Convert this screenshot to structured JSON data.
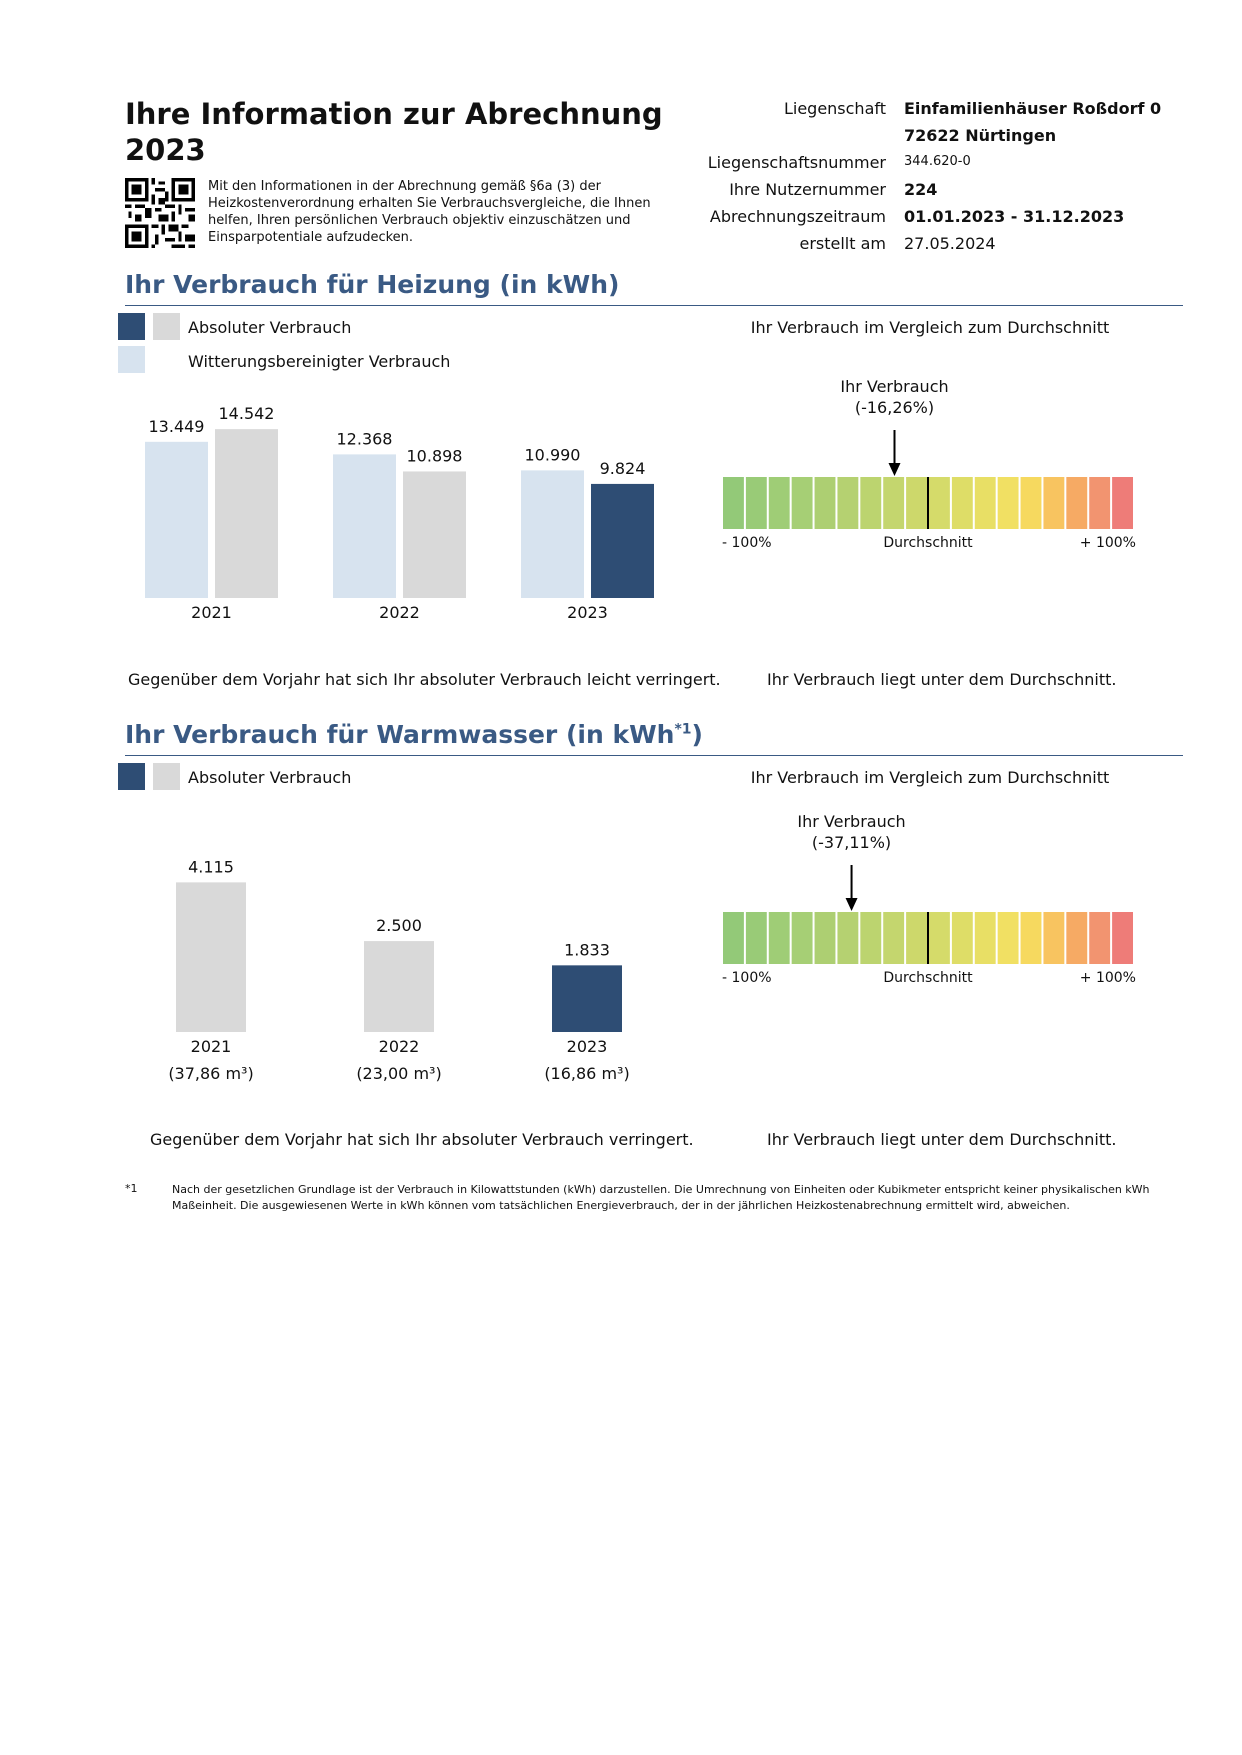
{
  "header": {
    "title_line1": "Ihre Information zur Abrechnung",
    "title_line2": "2023",
    "intro": "Mit den Informationen in der Abrechnung gemäß §6a (3) der Heizkostenverordnung erhalten Sie Verbrauchsvergleiche, die Ihnen helfen, Ihren persönlichen Verbrauch objektiv einzuschätzen und Einsparpotentiale aufzudecken."
  },
  "info": {
    "liegenschaft_label": "Liegenschaft",
    "liegenschaft_value1": "Einfamilienhäuser Roßdorf 0",
    "liegenschaft_value2": "72622 Nürtingen",
    "nummer_label": "Liegenschaftsnummer",
    "nummer_value": "344.620-0",
    "nutzer_label": "Ihre Nutzernummer",
    "nutzer_value": "224",
    "zeitraum_label": "Abrechnungszeitraum",
    "zeitraum_value": "01.01.2023 - 31.12.2023",
    "erstellt_label": "erstellt am",
    "erstellt_value": "27.05.2024"
  },
  "colors": {
    "accent": "#3a5a84",
    "bar_current": "#2e4d74",
    "bar_absolute": "#d9d9d9",
    "bar_weather": "#d7e3ef"
  },
  "heating": {
    "title": "Ihr Verbrauch für Heizung (in kWh)",
    "legend_absolute": "Absoluter Verbrauch",
    "legend_weather": "Witterungsbereinigter Verbrauch",
    "compare_title": "Ihr Verbrauch im Vergleich zum Durchschnitt",
    "marker_label": "Ihr Verbrauch",
    "marker_value": "(-16,26%)",
    "scale_min": "- 100%",
    "scale_mid": "Durchschnitt",
    "scale_max": "+ 100%",
    "summary_left": "Gegenüber dem Vorjahr hat sich Ihr absoluter Verbrauch leicht verringert.",
    "summary_right": "Ihr Verbrauch liegt unter dem Durchschnitt."
  },
  "water": {
    "title": "Ihr Verbrauch für Warmwasser (in kWh",
    "title_sup": "*1",
    "title_end": ")",
    "legend_absolute": "Absoluter Verbrauch",
    "compare_title": "Ihr Verbrauch im Vergleich zum Durchschnitt",
    "marker_label": "Ihr Verbrauch",
    "marker_value": "(-37,11%)",
    "scale_min": "- 100%",
    "scale_mid": "Durchschnitt",
    "scale_max": "+ 100%",
    "summary_left": "Gegenüber dem Vorjahr hat sich Ihr absoluter Verbrauch verringert.",
    "summary_right": "Ihr Verbrauch liegt unter dem Durchschnitt."
  },
  "footnote": {
    "mark": "*1",
    "text": "Nach der gesetzlichen Grundlage ist der Verbrauch in Kilowattstunden (kWh) darzustellen. Die Umrechnung von Einheiten oder Kubikmeter entspricht keiner physikalischen kWh Maßeinheit. Die ausgewiesenen Werte in kWh können vom tatsächlichen Energieverbrauch, der in der jährlichen Heizkostenabrechnung ermittelt wird, abweichen."
  },
  "chart_data": [
    {
      "type": "bar",
      "categories": [
        "2021",
        "2022",
        "2023"
      ],
      "series": [
        {
          "name": "Witterungsbereinigter Verbrauch",
          "values": [
            13449,
            12368,
            10990
          ],
          "labels": [
            "13.449",
            "12.368",
            "10.990"
          ]
        },
        {
          "name": "Absoluter Verbrauch",
          "values": [
            14542,
            10898,
            9824
          ],
          "labels": [
            "14.542",
            "10.898",
            "9.824"
          ]
        }
      ],
      "ylim": [
        0,
        15500
      ]
    },
    {
      "type": "bar",
      "categories": [
        "2021",
        "2022",
        "2023"
      ],
      "series": [
        {
          "name": "Absoluter Verbrauch",
          "values": [
            4115,
            2500,
            1833
          ],
          "labels": [
            "4.115",
            "2.500",
            "1.833"
          ]
        }
      ],
      "sublabels": [
        "(37,86 m³)",
        "(23,00 m³)",
        "(16,86 m³)"
      ],
      "ylim": [
        0,
        4400
      ]
    },
    {
      "type": "gauge",
      "range": [
        -100,
        100
      ],
      "value": -16.26,
      "segment_colors": [
        "#93c978",
        "#99cb77",
        "#9fcd76",
        "#a6cf75",
        "#adcf72",
        "#b5d171",
        "#bcd46f",
        "#c4d66e",
        "#cdd86b",
        "#d5db6a",
        "#dedd67",
        "#e8df65",
        "#f1e063",
        "#f6d95f",
        "#f8c460",
        "#f6aa64",
        "#f29470",
        "#ee7c78"
      ]
    },
    {
      "type": "gauge",
      "range": [
        -100,
        100
      ],
      "value": -37.11,
      "segment_colors": [
        "#93c978",
        "#99cb77",
        "#9fcd76",
        "#a6cf75",
        "#adcf72",
        "#b5d171",
        "#bcd46f",
        "#c4d66e",
        "#cdd86b",
        "#d5db6a",
        "#dedd67",
        "#e8df65",
        "#f1e063",
        "#f6d95f",
        "#f8c460",
        "#f6aa64",
        "#f29470",
        "#ee7c78"
      ]
    }
  ]
}
